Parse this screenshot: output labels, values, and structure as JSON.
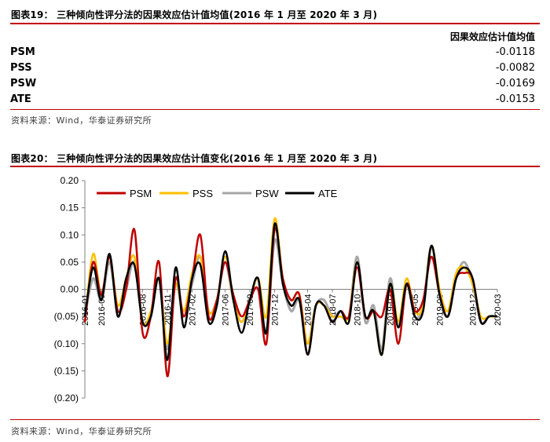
{
  "fig19": {
    "title": "图表19：   三种倾向性评分法的因果效应估计值均值(2016 年 1 月至 2020 年 3 月)",
    "header": "因果效应估计值均值",
    "rows": [
      {
        "label": "PSM",
        "value": "-0.0118"
      },
      {
        "label": "PSS",
        "value": "-0.0082"
      },
      {
        "label": "PSW",
        "value": "-0.0169"
      },
      {
        "label": "ATE",
        "value": "-0.0153"
      }
    ],
    "source": "资料来源：Wind，华泰证券研究所"
  },
  "fig20": {
    "title": "图表20：   三种倾向性评分法的因果效应估计值变化(2016 年 1 月至 2020 年 3 月)",
    "source": "资料来源：Wind，华泰证券研究所"
  },
  "colors": {
    "accent": "#c00000",
    "psm": "#c00000",
    "pss": "#ffc000",
    "psw": "#a6a6a6",
    "ate": "#000000"
  },
  "chart_data": {
    "type": "line",
    "title": "",
    "xlabel": "",
    "ylabel": "",
    "ylim": [
      -0.2,
      0.2
    ],
    "yticks": [
      "0.20",
      "0.15",
      "0.10",
      "0.05",
      "0.00",
      "(0.05)",
      "(0.10)",
      "(0.15)",
      "(0.20)"
    ],
    "ytick_values": [
      0.2,
      0.15,
      0.1,
      0.05,
      0.0,
      -0.05,
      -0.1,
      -0.15,
      -0.2
    ],
    "legend_position": "top",
    "x_tick_labels": [
      "2016-01",
      "2016-03",
      "2016-08",
      "2016-11",
      "2017-02",
      "2017-06",
      "2017-09",
      "2017-12",
      "2018-04",
      "2018-07",
      "2018-10",
      "2019-02",
      "2019-05",
      "2019-08",
      "2019-12",
      "2020-03"
    ],
    "x": [
      "2016-01",
      "2016-02",
      "2016-03",
      "2016-04",
      "2016-05",
      "2016-06",
      "2016-07",
      "2016-08",
      "2016-09",
      "2016-10",
      "2016-11",
      "2016-12",
      "2017-01",
      "2017-02",
      "2017-03",
      "2017-04",
      "2017-05",
      "2017-06",
      "2017-07",
      "2017-08",
      "2017-09",
      "2017-10",
      "2017-11",
      "2017-12",
      "2018-01",
      "2018-02",
      "2018-03",
      "2018-04",
      "2018-05",
      "2018-06",
      "2018-07",
      "2018-08",
      "2018-09",
      "2018-10",
      "2018-11",
      "2018-12",
      "2019-01",
      "2019-02",
      "2019-03",
      "2019-04",
      "2019-05",
      "2019-06",
      "2019-07",
      "2019-08",
      "2019-09",
      "2019-10",
      "2019-11",
      "2019-12",
      "2020-01",
      "2020-02",
      "2020-03"
    ],
    "series": [
      {
        "name": "PSM",
        "color": "#c00000",
        "values": [
          -0.06,
          0.05,
          -0.01,
          0.06,
          -0.04,
          0.0,
          0.11,
          -0.08,
          -0.05,
          0.05,
          -0.16,
          0.02,
          -0.05,
          0.02,
          0.1,
          -0.05,
          -0.02,
          0.05,
          -0.01,
          -0.05,
          -0.02,
          0.0,
          -0.1,
          0.11,
          0.02,
          -0.02,
          -0.01,
          -0.12,
          -0.03,
          -0.03,
          -0.06,
          -0.04,
          -0.05,
          0.04,
          -0.05,
          -0.04,
          -0.05,
          0.0,
          -0.1,
          0.01,
          -0.04,
          -0.02,
          0.06,
          -0.01,
          -0.05,
          0.02,
          0.03,
          0.02,
          -0.06,
          -0.05,
          -0.05
        ]
      },
      {
        "name": "PSS",
        "color": "#ffc000",
        "values": [
          -0.06,
          0.065,
          -0.01,
          0.06,
          -0.03,
          0.02,
          0.06,
          -0.06,
          -0.04,
          0.02,
          -0.1,
          0.01,
          -0.04,
          0.03,
          0.06,
          -0.04,
          -0.02,
          0.06,
          -0.02,
          -0.06,
          -0.02,
          0.02,
          -0.05,
          0.13,
          0.02,
          -0.02,
          -0.01,
          -0.1,
          -0.03,
          -0.03,
          -0.05,
          -0.05,
          -0.05,
          0.05,
          -0.05,
          -0.04,
          -0.12,
          0.01,
          -0.06,
          0.02,
          -0.04,
          -0.03,
          0.08,
          0.0,
          -0.04,
          0.03,
          0.04,
          0.01,
          -0.05,
          -0.05,
          -0.05
        ]
      },
      {
        "name": "PSW",
        "color": "#a6a6a6",
        "values": [
          -0.05,
          0.02,
          -0.02,
          0.05,
          -0.04,
          0.0,
          0.05,
          -0.06,
          -0.05,
          0.02,
          -0.11,
          0.01,
          -0.05,
          0.01,
          0.06,
          -0.04,
          -0.02,
          0.05,
          -0.02,
          -0.06,
          -0.02,
          0.02,
          -0.08,
          0.09,
          0.01,
          -0.04,
          -0.02,
          -0.1,
          -0.03,
          -0.02,
          -0.05,
          -0.04,
          -0.05,
          0.06,
          -0.06,
          -0.03,
          -0.11,
          0.02,
          -0.07,
          0.01,
          -0.05,
          -0.03,
          0.08,
          -0.01,
          -0.05,
          0.02,
          0.05,
          0.01,
          -0.06,
          -0.05,
          -0.05
        ]
      },
      {
        "name": "ATE",
        "color": "#000000",
        "values": [
          -0.05,
          0.04,
          -0.02,
          0.065,
          -0.05,
          0.02,
          0.045,
          -0.06,
          -0.05,
          0.02,
          -0.13,
          0.04,
          -0.07,
          0.02,
          0.045,
          -0.06,
          -0.03,
          0.07,
          -0.02,
          -0.08,
          -0.02,
          0.02,
          -0.08,
          0.12,
          0.01,
          -0.03,
          -0.02,
          -0.12,
          -0.03,
          -0.03,
          -0.06,
          -0.04,
          -0.06,
          0.05,
          -0.05,
          -0.04,
          -0.12,
          0.01,
          -0.07,
          0.01,
          -0.05,
          -0.04,
          0.08,
          -0.01,
          -0.05,
          0.02,
          0.04,
          0.02,
          -0.06,
          -0.05,
          -0.05
        ]
      }
    ]
  }
}
